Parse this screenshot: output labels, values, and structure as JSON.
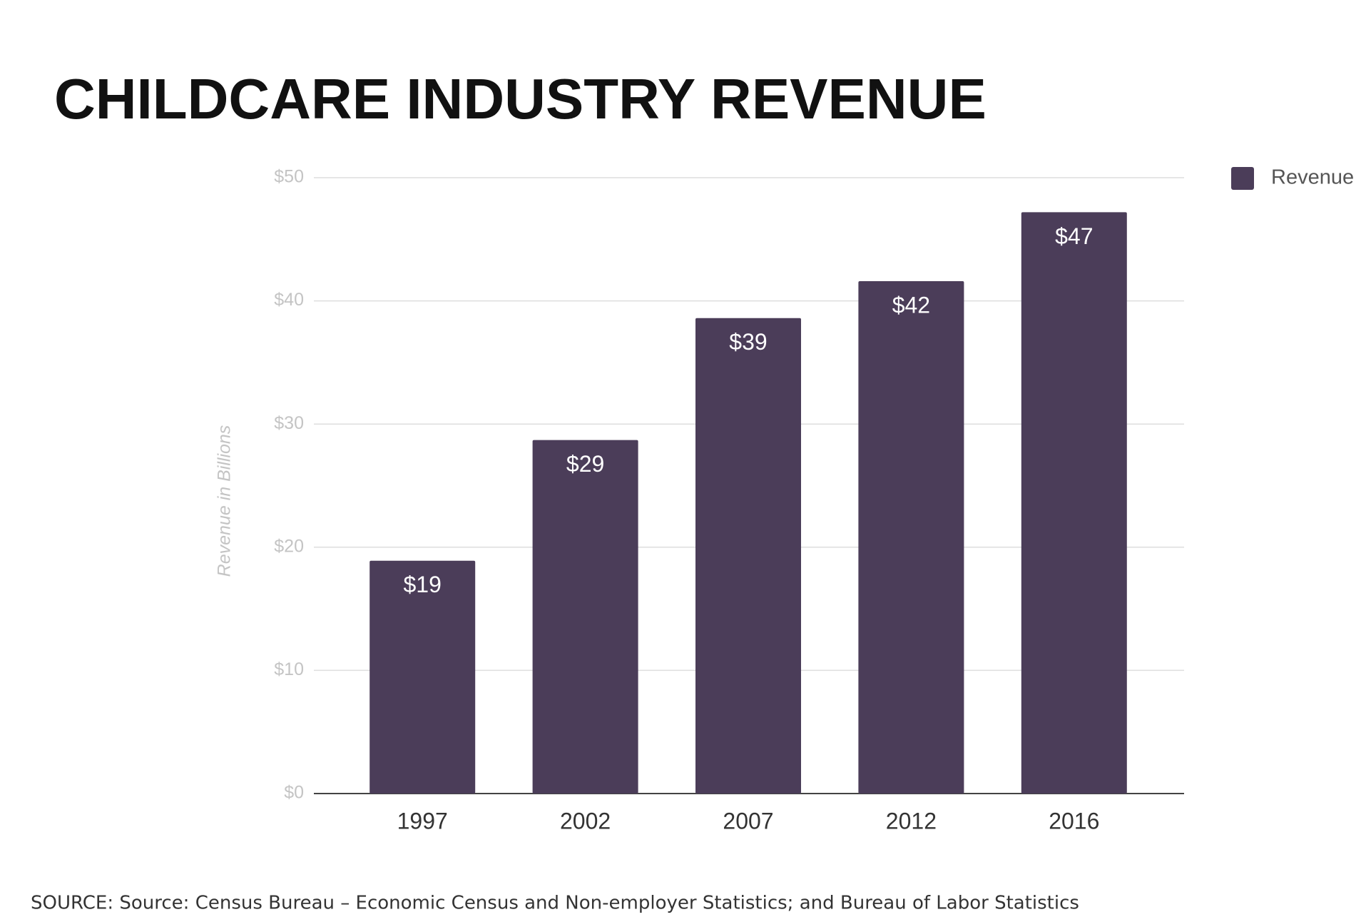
{
  "chart_data": {
    "type": "bar",
    "title": "CHILDCARE INDUSTRY REVENUE",
    "y_label": "Revenue in Billions",
    "source": "SOURCE: Source: Census Bureau – Economic Census and Non-employer Statistics; and Bureau of Labor Statistics",
    "categories": [
      "1997",
      "2002",
      "2007",
      "2012",
      "2016"
    ],
    "series": [
      {
        "name": "Revenue",
        "color": "#4b3d59",
        "values": [
          18.9,
          28.7,
          38.6,
          41.6,
          47.2
        ],
        "value_labels": [
          "$19",
          "$29",
          "$39",
          "$42",
          "$47"
        ]
      }
    ],
    "ylim": [
      0,
      50
    ],
    "yticks": [
      {
        "value": 0,
        "label": "$0"
      },
      {
        "value": 10,
        "label": "$10"
      },
      {
        "value": 20,
        "label": "$20"
      },
      {
        "value": 30,
        "label": "$30"
      },
      {
        "value": 40,
        "label": "$40"
      },
      {
        "value": 50,
        "label": "$50"
      }
    ],
    "grid": true,
    "legend": "top-right"
  }
}
